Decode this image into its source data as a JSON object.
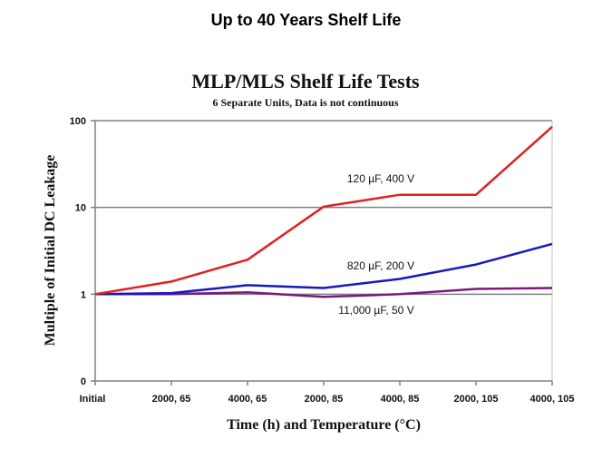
{
  "slide": {
    "title": "Up to 40 Years Shelf Life"
  },
  "chart_data": {
    "type": "line",
    "title": "MLP/MLS Shelf Life Tests",
    "subtitle": "6 Separate Units, Data is not continuous",
    "xlabel": "Time (h) and Temperature (°C)",
    "ylabel": "Multiple of Initial DC Leakage",
    "yscale": "log",
    "ylim": [
      0.1,
      100
    ],
    "yticks": [
      {
        "value": 0.1,
        "label": "0"
      },
      {
        "value": 1,
        "label": "1"
      },
      {
        "value": 10,
        "label": "10"
      },
      {
        "value": 100,
        "label": "100"
      }
    ],
    "grid": true,
    "legend": "inline-labels",
    "categories": [
      "Initial",
      "2000, 65",
      "4000, 65",
      "2000, 85",
      "4000, 85",
      "2000, 105",
      "4000, 105"
    ],
    "series": [
      {
        "name": "120 µF, 400 V",
        "color": "#e02020",
        "values": [
          1,
          1.4,
          2.5,
          10.2,
          14,
          14,
          85
        ]
      },
      {
        "name": "820 µF, 200 V",
        "color": "#1818c0",
        "values": [
          1,
          1.03,
          1.27,
          1.18,
          1.5,
          2.2,
          3.8
        ]
      },
      {
        "name": "11,000 µF, 50 V",
        "color": "#7a1a7a",
        "values": [
          1,
          1.0,
          1.05,
          0.93,
          1.0,
          1.15,
          1.18
        ]
      }
    ]
  }
}
